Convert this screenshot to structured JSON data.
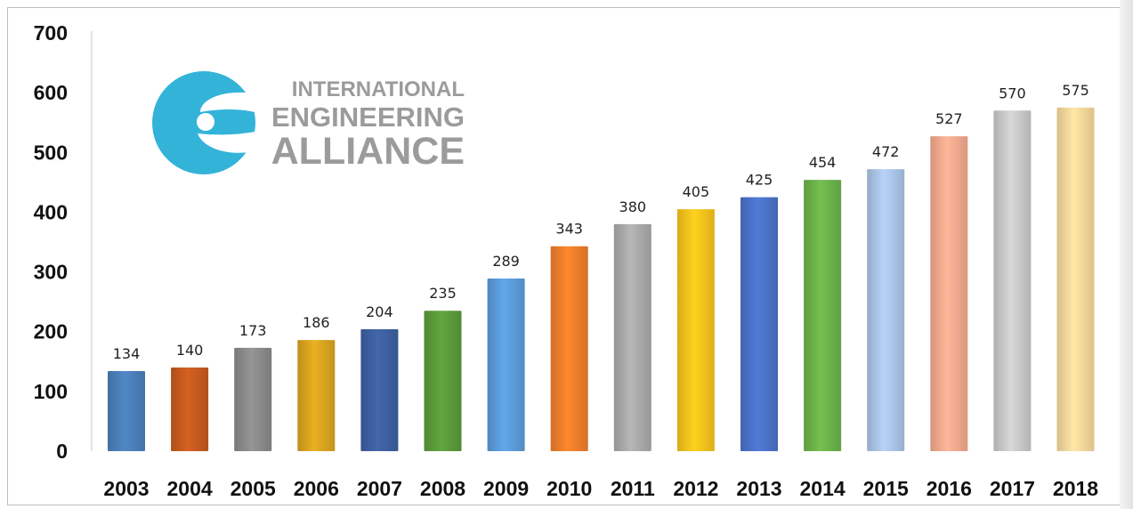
{
  "logo": {
    "line1": "INTERNATIONAL",
    "line2": "ENGINEERING",
    "line3": "ALLIANCE",
    "icon": "engineering-alliance-logo-icon",
    "icon_color": "#34b3d9"
  },
  "chart_data": {
    "type": "bar",
    "title": "",
    "xlabel": "",
    "ylabel": "",
    "ylim": [
      0,
      700
    ],
    "yticks": [
      0,
      100,
      200,
      300,
      400,
      500,
      600,
      700
    ],
    "categories": [
      "2003",
      "2004",
      "2005",
      "2006",
      "2007",
      "2008",
      "2009",
      "2010",
      "2011",
      "2012",
      "2013",
      "2014",
      "2015",
      "2016",
      "2017",
      "2018"
    ],
    "values": [
      134,
      140,
      173,
      186,
      204,
      235,
      289,
      343,
      380,
      405,
      425,
      454,
      472,
      527,
      570,
      575
    ],
    "colors": [
      "#4a7fb8",
      "#c65a1f",
      "#8a8a8a",
      "#d9a31f",
      "#3d5fa0",
      "#5a9a3a",
      "#5b9bd9",
      "#ef7d2a",
      "#a9a9a9",
      "#f7c21c",
      "#4a72c8",
      "#6cb24a",
      "#a9c4e6",
      "#f2a98e",
      "#c8c8c8",
      "#f7d79a"
    ],
    "grid": false,
    "legend": "none"
  }
}
